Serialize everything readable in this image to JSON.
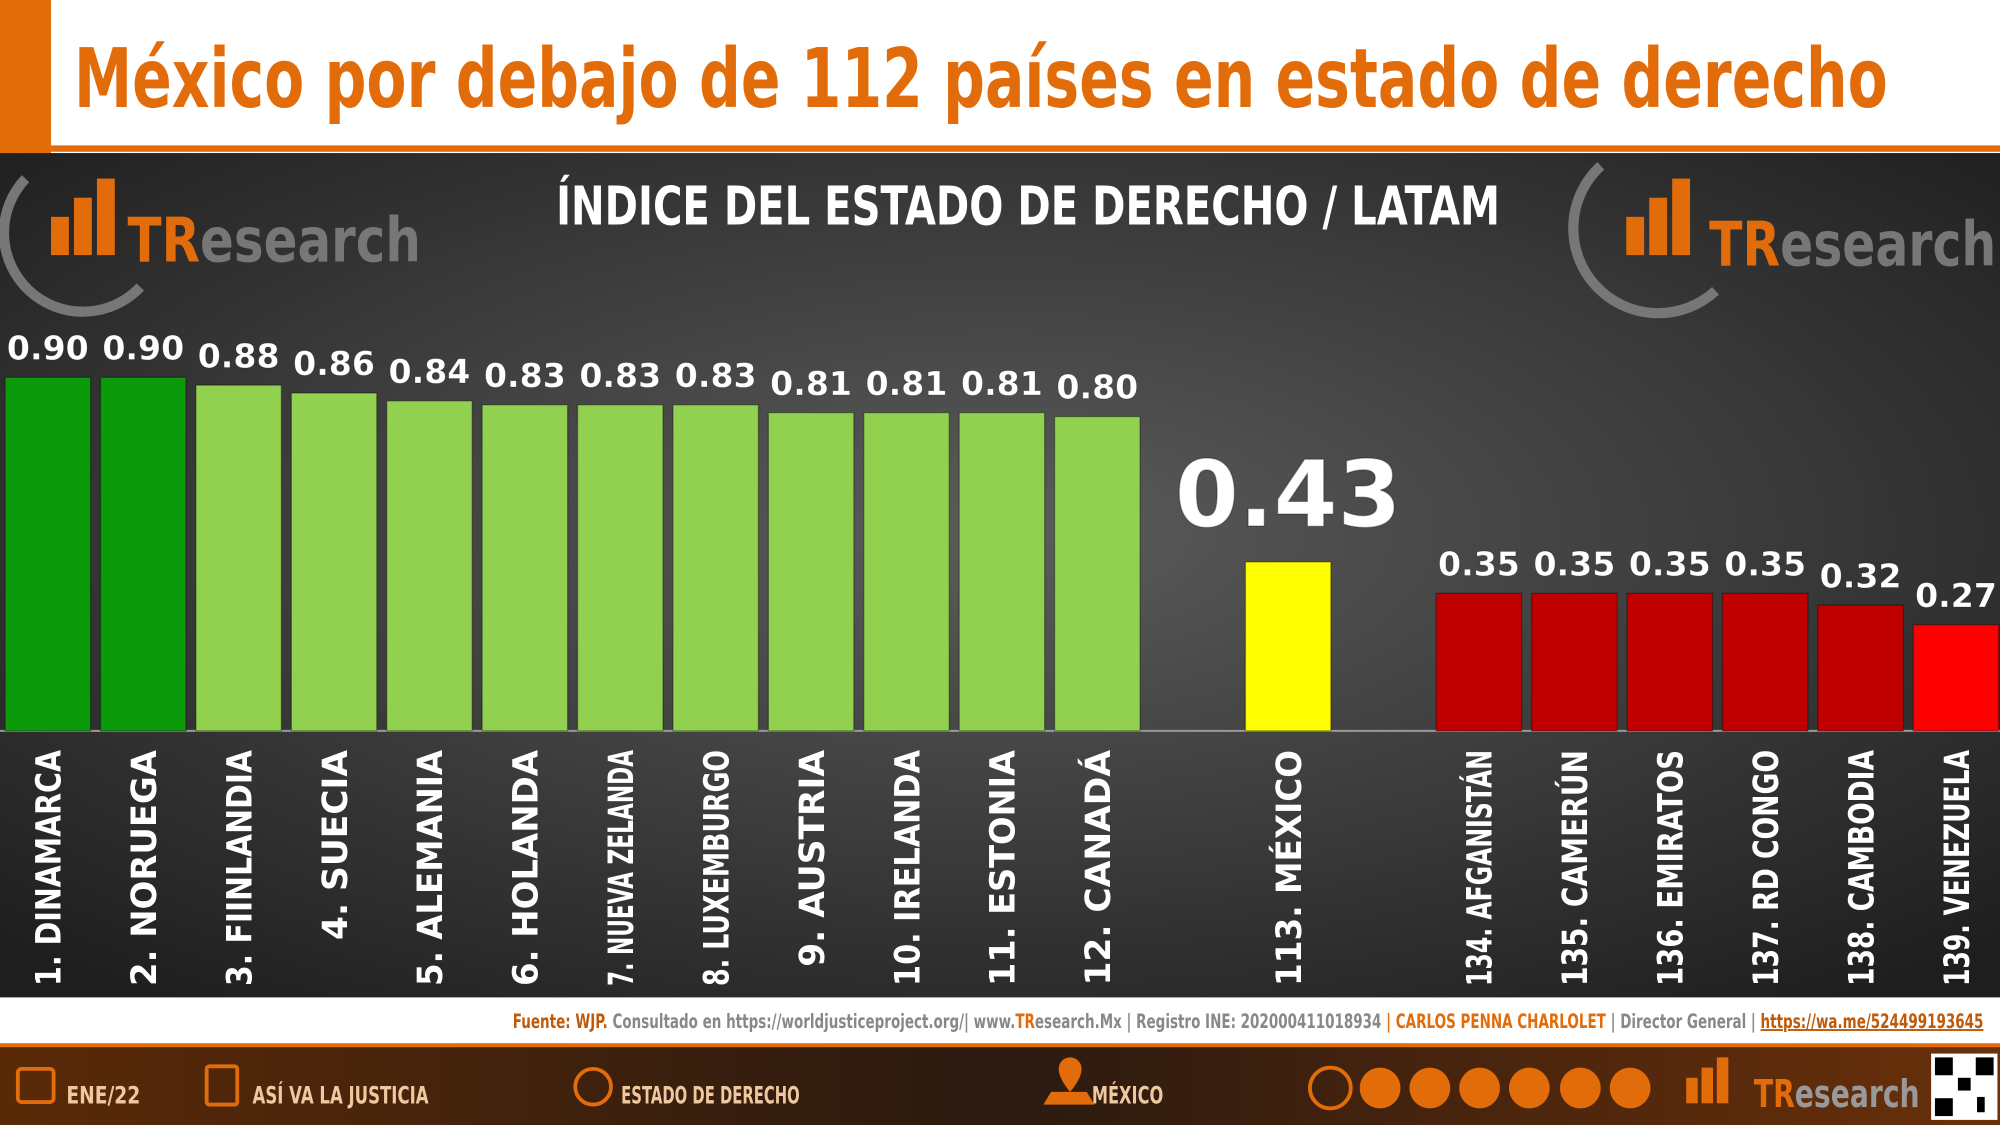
{
  "header": {
    "title": "México por debajo de 112 países en estado de derecho"
  },
  "logo": {
    "tr": "TR",
    "rest": "esearch"
  },
  "chart_data": {
    "type": "bar",
    "title": "ÍNDICE DEL ESTADO DE DERECHO / LATAM",
    "categories": [
      "1. DINAMARCA",
      "2. NORUEGA",
      "3. FIINLANDIA",
      "4. SUECIA",
      "5. ALEMANIA",
      "6. HOLANDA",
      "7. NUEVA ZELANDA",
      "8. LUXEMBURGO",
      "9. AUSTRIA",
      "10. IRELANDA",
      "11. ESTONIA",
      "12. CANADÁ",
      null,
      "113. MÉXICO",
      null,
      "134. AFGANISTÁN",
      "135. CAMERÚN",
      "136. EMIRATOS",
      "137. RD CONGO",
      "138. CAMBODIA",
      "139. VENEZUELA"
    ],
    "values": [
      0.9,
      0.9,
      0.88,
      0.86,
      0.84,
      0.83,
      0.83,
      0.83,
      0.81,
      0.81,
      0.81,
      0.8,
      null,
      0.43,
      null,
      0.35,
      0.35,
      0.35,
      0.35,
      0.32,
      0.27
    ],
    "value_labels": [
      "0.90",
      "0.90",
      "0.88",
      "0.86",
      "0.84",
      "0.83",
      "0.83",
      "0.83",
      "0.81",
      "0.81",
      "0.81",
      "0.80",
      null,
      "0.43",
      null,
      "0.35",
      "0.35",
      "0.35",
      "0.35",
      "0.32",
      "0.27"
    ],
    "colors": [
      "#0a9a0a",
      "#0a9a0a",
      "#92d050",
      "#92d050",
      "#92d050",
      "#92d050",
      "#92d050",
      "#92d050",
      "#92d050",
      "#92d050",
      "#92d050",
      "#92d050",
      null,
      "#ffff00",
      null,
      "#c00000",
      "#c00000",
      "#c00000",
      "#c00000",
      "#c00000",
      "#ff0000"
    ],
    "ylim": [
      0,
      1
    ]
  },
  "footer": {
    "source": [
      "Fuente: WJP.",
      " Consultado en https://worldjusticeproject.org/",
      "| www.",
      "TR",
      "esearch.Mx",
      " | Registro INE: 202000411018934 ",
      " | CARLOS PENNA CHARLOLET",
      " | Director General | ",
      "https://wa.me/524499193645"
    ],
    "items": [
      "ENE/22",
      "ASÍ VA LA JUSTICIA",
      "ESTADO DE DERECHO",
      "MÉXICO"
    ]
  }
}
